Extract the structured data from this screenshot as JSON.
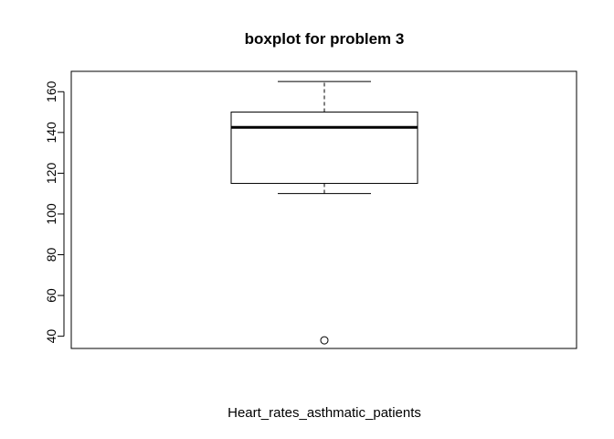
{
  "chart_data": {
    "type": "boxplot",
    "title": "boxplot for problem 3",
    "xlabel": "Heart_rates_asthmatic_patients",
    "ylabel": "",
    "ylim": [
      34,
      170
    ],
    "yticks": [
      40,
      60,
      80,
      100,
      120,
      140,
      160
    ],
    "ytick_labels": [
      "40",
      "60",
      "80",
      "100",
      "120",
      "140",
      "160"
    ],
    "grid": false,
    "series": [
      {
        "name": "",
        "whisker_low": 110,
        "q1": 115,
        "median": 142.5,
        "q3": 150,
        "whisker_high": 165,
        "outliers": [
          38
        ]
      }
    ]
  }
}
